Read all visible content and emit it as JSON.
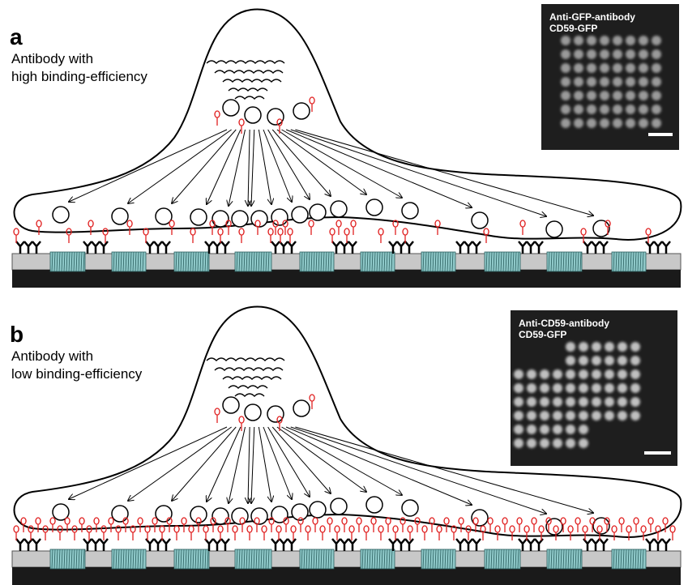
{
  "panels": [
    {
      "label": "a",
      "caption_lines": [
        "Antibody with",
        "high binding-efficiency"
      ],
      "inset_lines": [
        "Anti-GFP-antibody",
        "CD59-GFP"
      ]
    },
    {
      "label": "b",
      "caption_lines": [
        "Antibody with",
        "low binding-efficiency"
      ],
      "inset_lines": [
        "Anti-CD59-antibody",
        "CD59-GFP"
      ]
    }
  ]
}
